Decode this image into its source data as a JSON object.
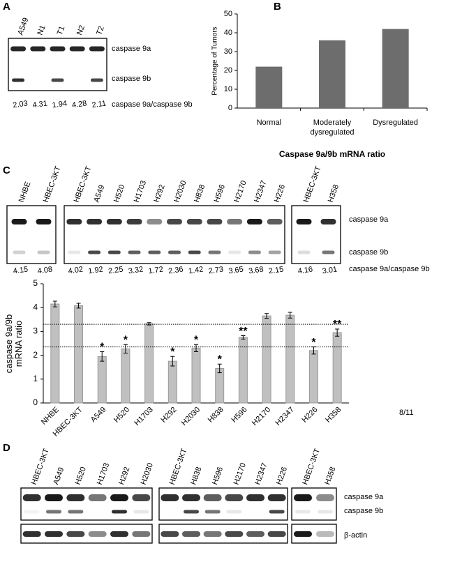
{
  "panel_a": {
    "letter": "A",
    "lanes": [
      "A549",
      "N1",
      "T1",
      "N2",
      "T2"
    ],
    "band_labels": [
      "caspase 9a",
      "caspase 9b"
    ],
    "ratio_label": "caspase 9a/caspase 9b",
    "ratios": [
      2.03,
      4.31,
      1.94,
      4.28,
      2.11
    ]
  },
  "panel_c_blot": {
    "letter": "C",
    "groups": [
      {
        "lanes": [
          "NHBE",
          "HBEC-3KT"
        ],
        "ratios": [
          4.15,
          4.08
        ]
      },
      {
        "lanes": [
          "HBEC-3KT",
          "A549",
          "H520",
          "H1703",
          "H292",
          "H2030",
          "H838",
          "H596",
          "H2170",
          "H2347",
          "H226"
        ],
        "ratios": [
          4.02,
          1.92,
          2.25,
          3.32,
          1.72,
          2.36,
          1.42,
          2.73,
          3.65,
          3.68,
          2.15
        ]
      },
      {
        "lanes": [
          "HBEC-3KT",
          "H358"
        ],
        "ratios": [
          4.16,
          3.01
        ]
      }
    ],
    "band_labels": [
      "caspase 9a",
      "caspase 9b"
    ],
    "ratio_label": "caspase 9a/caspase 9b"
  },
  "panel_d": {
    "letter": "D",
    "groups": [
      {
        "lanes": [
          "HBEC-3KT",
          "A549",
          "H520",
          "H1703",
          "H292",
          "H2030"
        ]
      },
      {
        "lanes": [
          "HBEC-3KT",
          "H838",
          "H596",
          "H2170",
          "H2347",
          "H226"
        ]
      },
      {
        "lanes": [
          "HBEC-3KT",
          "H358"
        ]
      }
    ],
    "band_labels": [
      "caspase 9a",
      "caspase 9b",
      "β-actin"
    ]
  },
  "chart_data": [
    {
      "type": "bar",
      "letter": "B",
      "categories": [
        "Normal",
        "Moderately dysregulated",
        "Dysregulated"
      ],
      "values": [
        22,
        36,
        42
      ],
      "color": "#6d6d6d",
      "ylabel": "Percentage of Tumors",
      "xlabel": "Caspase 9a/9b mRNA ratio",
      "ylim": [
        0,
        50
      ],
      "yticks": [
        0,
        10,
        20,
        30,
        40,
        50
      ]
    },
    {
      "type": "errorbar",
      "categories": [
        "NHBE",
        "HBEC-3KT",
        "A549",
        "H520",
        "H1703",
        "H292",
        "H2030",
        "H838",
        "H596",
        "H2170",
        "H2347",
        "H226",
        "H358"
      ],
      "values": [
        4.15,
        4.08,
        1.95,
        2.27,
        3.32,
        1.75,
        2.3,
        1.45,
        2.75,
        3.65,
        3.68,
        2.2,
        2.95
      ],
      "errors": [
        0.12,
        0.1,
        0.2,
        0.18,
        0.05,
        0.2,
        0.15,
        0.18,
        0.07,
        0.1,
        0.12,
        0.15,
        0.15
      ],
      "significance": [
        null,
        null,
        "*",
        "*",
        null,
        "*",
        "*",
        "*",
        "**",
        null,
        null,
        "*",
        "**"
      ],
      "reference_lines": [
        3.3,
        2.35
      ],
      "color": "#c0c0c0",
      "ylabel": "caspase 9a/9b mRNA ratio",
      "annotation": "8/11",
      "ylim": [
        0,
        5
      ],
      "yticks": [
        0,
        1,
        2,
        3,
        4,
        5
      ]
    }
  ]
}
